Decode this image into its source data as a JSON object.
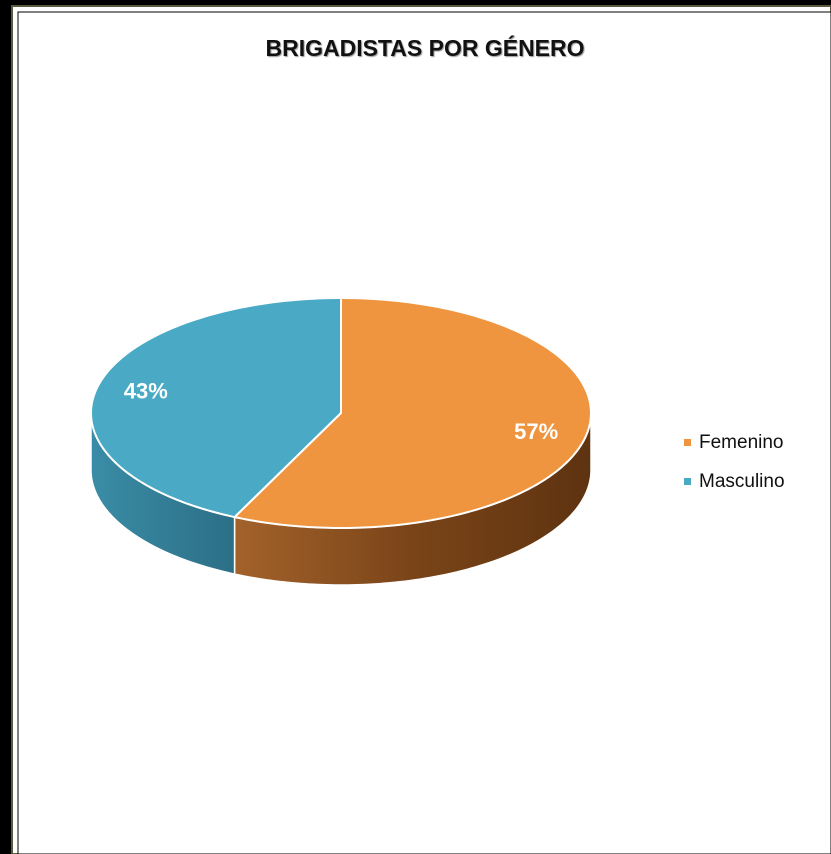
{
  "chart_data": {
    "type": "pie",
    "title": "BRIGADISTAS POR GÉNERO",
    "categories": [
      "Femenino",
      "Masculino"
    ],
    "values": [
      57,
      43
    ],
    "value_labels": [
      "57%",
      "43%"
    ],
    "colors": [
      "#f0953f",
      "#4aaac5"
    ],
    "legend": "right"
  }
}
